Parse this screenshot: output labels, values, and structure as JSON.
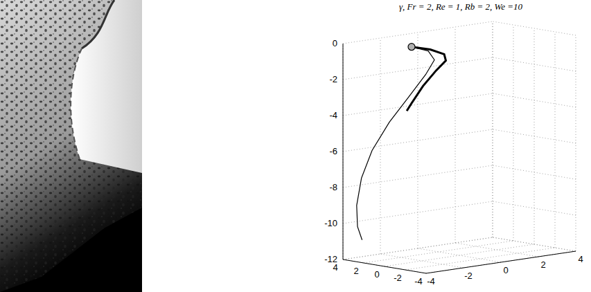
{
  "chart_data": {
    "type": "line3d",
    "title": "γ, Fr = 2, Re = 1, Rb = 2, We =10",
    "xlim": [
      -4,
      4
    ],
    "xticks": [
      -4,
      -2,
      0,
      2,
      4
    ],
    "ylim": [
      -4,
      4
    ],
    "yticks": [
      -4,
      -2,
      0,
      2,
      4
    ],
    "zlim": [
      -12,
      0
    ],
    "zticks": [
      -12,
      -10,
      -8,
      -6,
      -4,
      -2,
      0
    ],
    "grid": true,
    "series": [
      {
        "color": "#000000",
        "line_style": "thin",
        "x": [
          -2,
          -1,
          -0.5,
          -0.8,
          -1.5,
          -2.3,
          -3,
          -3.4,
          -3.6,
          -3.5,
          -3.2
        ],
        "y": [
          1,
          1.2,
          1.5,
          1.8,
          2.2,
          2.6,
          3,
          3.3,
          3.4,
          3.5,
          3.6
        ],
        "z": [
          -0.2,
          -0.6,
          -1.2,
          -2,
          -3.2,
          -4.5,
          -6,
          -7.5,
          -9,
          -10.2,
          -11
        ]
      },
      {
        "color": "#000000",
        "line_style": "thick",
        "x": [
          -2,
          -1,
          -0.2,
          0,
          -0.4,
          -1,
          -1.5,
          -1.7
        ],
        "y": [
          1,
          1,
          1.1,
          1.3,
          1.5,
          1.7,
          1.9,
          2
        ],
        "z": [
          -0.2,
          -0.5,
          -0.9,
          -1.3,
          -1.8,
          -2.6,
          -3.5,
          -3.9
        ]
      },
      {
        "type": "scatter",
        "marker": "circle",
        "color": "#b0b0b0",
        "x": [
          -2
        ],
        "y": [
          1
        ],
        "z": [
          -0.2
        ]
      }
    ]
  }
}
